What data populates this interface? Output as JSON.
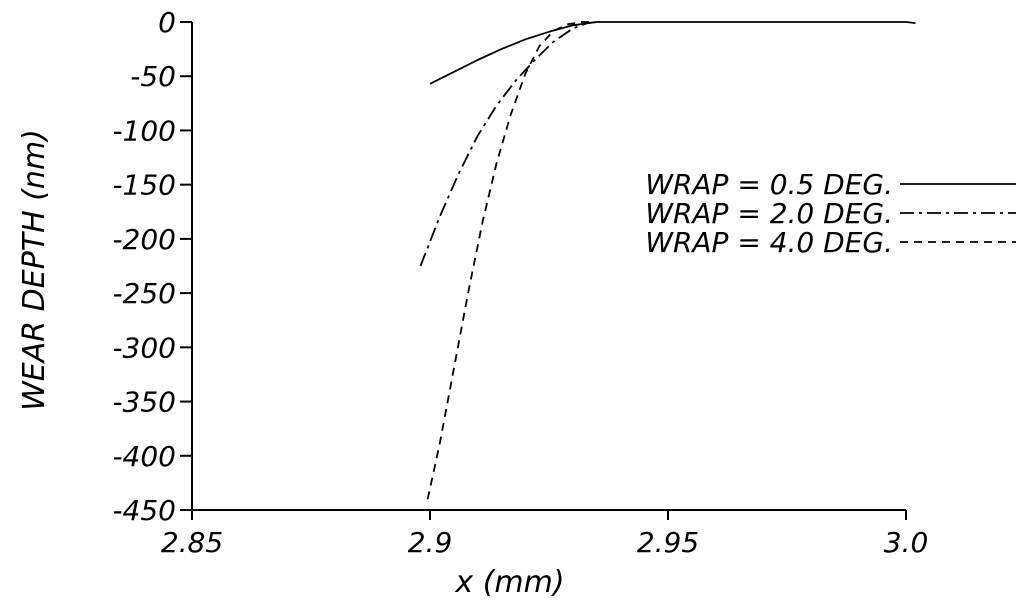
{
  "chart_data": {
    "type": "line",
    "title": "",
    "xlabel": "x (mm)",
    "ylabel": "WEAR DEPTH (nm)",
    "xlim": [
      2.85,
      3.0
    ],
    "ylim": [
      -450,
      0
    ],
    "xticks": [
      "2.85",
      "2.9",
      "2.95",
      "3.0"
    ],
    "xtick_values": [
      2.85,
      2.9,
      2.95,
      3.0
    ],
    "yticks": [
      "0",
      "-50",
      "-100",
      "-150",
      "-200",
      "-250",
      "-300",
      "-350",
      "-400",
      "-450"
    ],
    "ytick_values": [
      0,
      -50,
      -100,
      -150,
      -200,
      -250,
      -300,
      -350,
      -400,
      -450
    ],
    "grid": false,
    "legend_position": "right",
    "series": [
      {
        "name": "WRAP = 0.5 DEG.",
        "style": "solid",
        "x": [
          2.9,
          2.905,
          2.91,
          2.915,
          2.92,
          2.925,
          2.93,
          2.935,
          2.94,
          2.95,
          2.96,
          2.97,
          2.98,
          2.99,
          3.0,
          3.002
        ],
        "y": [
          -57,
          -46,
          -35,
          -25,
          -16,
          -9,
          -3,
          0,
          0,
          0,
          0,
          0,
          0,
          0,
          0,
          -1
        ]
      },
      {
        "name": "WRAP = 2.0 DEG.",
        "style": "dashdot",
        "x": [
          2.898,
          2.902,
          2.906,
          2.91,
          2.914,
          2.918,
          2.922,
          2.926,
          2.93,
          2.933,
          2.935
        ],
        "y": [
          -225,
          -180,
          -140,
          -105,
          -77,
          -54,
          -35,
          -18,
          -6,
          -1,
          0
        ]
      },
      {
        "name": "WRAP = 4.0 DEG.",
        "style": "dashed",
        "x": [
          2.8995,
          2.902,
          2.905,
          2.908,
          2.911,
          2.914,
          2.917,
          2.92,
          2.923,
          2.926,
          2.929,
          2.932,
          2.934
        ],
        "y": [
          -440,
          -390,
          -320,
          -250,
          -185,
          -130,
          -85,
          -48,
          -22,
          -8,
          -2,
          0,
          0
        ]
      }
    ]
  },
  "colors": {
    "line": "#000000",
    "background": "#ffffff"
  }
}
